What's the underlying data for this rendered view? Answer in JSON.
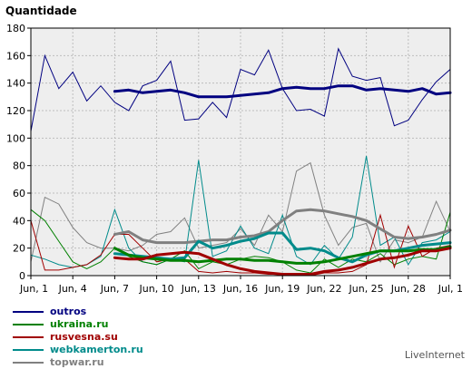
{
  "chart_data": {
    "type": "line",
    "title": "",
    "ylabel": "Quantidade",
    "xlabel": "",
    "ylim": [
      0,
      180
    ],
    "yticks": [
      0,
      20,
      40,
      60,
      80,
      100,
      120,
      140,
      160,
      180
    ],
    "grid": true,
    "legend_position": "bottom-left",
    "x_tick_labels": [
      "Jun, 1",
      "Jun, 4",
      "Jun, 7",
      "Jun, 10",
      "Jun, 13",
      "Jun, 16",
      "Jun, 19",
      "Jun, 22",
      "Jun, 25",
      "Jun, 28",
      "Jul, 1"
    ],
    "x_tick_days": [
      1,
      4,
      7,
      10,
      13,
      16,
      19,
      22,
      25,
      28,
      31
    ],
    "x_days": [
      1,
      2,
      3,
      4,
      5,
      6,
      7,
      8,
      9,
      10,
      11,
      12,
      13,
      14,
      15,
      16,
      17,
      18,
      19,
      20,
      21,
      22,
      23,
      24,
      25,
      26,
      27,
      28,
      29,
      30,
      31
    ],
    "series": [
      {
        "name": "outros",
        "color": "#000080",
        "values": [
          105,
          160,
          136,
          148,
          127,
          138,
          126,
          120,
          138,
          142,
          156,
          113,
          114,
          126,
          115,
          150,
          146,
          164,
          136,
          120,
          121,
          116,
          165,
          145,
          142,
          144,
          109,
          113,
          128,
          141,
          150
        ],
        "trend_days": [
          7,
          8,
          9,
          10,
          11,
          12,
          13,
          14,
          15,
          16,
          17,
          18,
          19,
          20,
          21,
          22,
          23,
          24,
          25,
          26,
          27,
          28,
          29,
          30,
          31
        ],
        "trend": [
          134,
          135,
          133,
          134,
          135,
          133,
          130,
          130,
          130,
          131,
          132,
          133,
          136,
          137,
          136,
          136,
          138,
          138,
          135,
          136,
          135,
          134,
          136,
          132,
          133
        ]
      },
      {
        "name": "ukraina.ru",
        "color": "#008000",
        "values": [
          48,
          40,
          25,
          10,
          5,
          10,
          20,
          14,
          10,
          8,
          12,
          18,
          5,
          10,
          8,
          12,
          14,
          13,
          10,
          4,
          2,
          12,
          6,
          12,
          10,
          16,
          8,
          12,
          14,
          12,
          46
        ],
        "trend_days": [
          7,
          8,
          9,
          10,
          11,
          12,
          13,
          14,
          15,
          16,
          17,
          18,
          19,
          20,
          21,
          22,
          23,
          24,
          25,
          26,
          27,
          28,
          29,
          30,
          31
        ],
        "trend": [
          20,
          15,
          13,
          12,
          11,
          11,
          10,
          11,
          12,
          12,
          11,
          11,
          10,
          9,
          9,
          10,
          12,
          14,
          16,
          18,
          18,
          18,
          19,
          19,
          21
        ]
      },
      {
        "name": "rusvesna.su",
        "color": "#a00000",
        "values": [
          40,
          4,
          4,
          6,
          8,
          15,
          30,
          30,
          20,
          10,
          12,
          12,
          3,
          2,
          3,
          2,
          2,
          1,
          1,
          1,
          0,
          2,
          2,
          3,
          8,
          44,
          6,
          36,
          14,
          20,
          22
        ],
        "trend_days": [
          7,
          8,
          9,
          10,
          11,
          12,
          13,
          14,
          15,
          16,
          17,
          18,
          19,
          20,
          21,
          22,
          23,
          24,
          25,
          26,
          27,
          28,
          29,
          30,
          31
        ],
        "trend": [
          13,
          12,
          12,
          15,
          16,
          17,
          16,
          12,
          8,
          5,
          3,
          2,
          1,
          1,
          1,
          3,
          4,
          6,
          9,
          12,
          13,
          15,
          18,
          18,
          20
        ]
      },
      {
        "name": "webkamerton.ru",
        "color": "#008b8b",
        "values": [
          15,
          12,
          8,
          6,
          8,
          14,
          48,
          20,
          10,
          8,
          12,
          10,
          84,
          14,
          18,
          36,
          20,
          16,
          44,
          14,
          8,
          22,
          12,
          28,
          87,
          22,
          28,
          8,
          24,
          26,
          32
        ],
        "trend_days": [
          7,
          8,
          9,
          10,
          11,
          12,
          13,
          14,
          15,
          16,
          17,
          18,
          19,
          20,
          21,
          22,
          23,
          24,
          25,
          26,
          27,
          28,
          29,
          30,
          31
        ],
        "trend": [
          16,
          15,
          14,
          13,
          12,
          13,
          25,
          20,
          22,
          25,
          27,
          31,
          31,
          19,
          20,
          18,
          13,
          10,
          15,
          18,
          18,
          20,
          22,
          23,
          24
        ]
      },
      {
        "name": "topwar.ru",
        "color": "#808080",
        "values": [
          10,
          57,
          52,
          35,
          24,
          20,
          20,
          18,
          22,
          30,
          32,
          42,
          20,
          22,
          24,
          34,
          22,
          44,
          32,
          76,
          82,
          44,
          22,
          35,
          38,
          10,
          26,
          24,
          28,
          54,
          32
        ],
        "trend_days": [
          7,
          8,
          9,
          10,
          11,
          12,
          13,
          14,
          15,
          16,
          17,
          18,
          19,
          20,
          21,
          22,
          23,
          24,
          25,
          26,
          27,
          28,
          29,
          30,
          31
        ],
        "trend": [
          30,
          32,
          26,
          24,
          24,
          24,
          25,
          26,
          26,
          28,
          29,
          32,
          40,
          47,
          48,
          47,
          45,
          43,
          40,
          34,
          28,
          27,
          28,
          30,
          33
        ]
      }
    ]
  },
  "footer": {
    "credit": "LiveInternet"
  }
}
